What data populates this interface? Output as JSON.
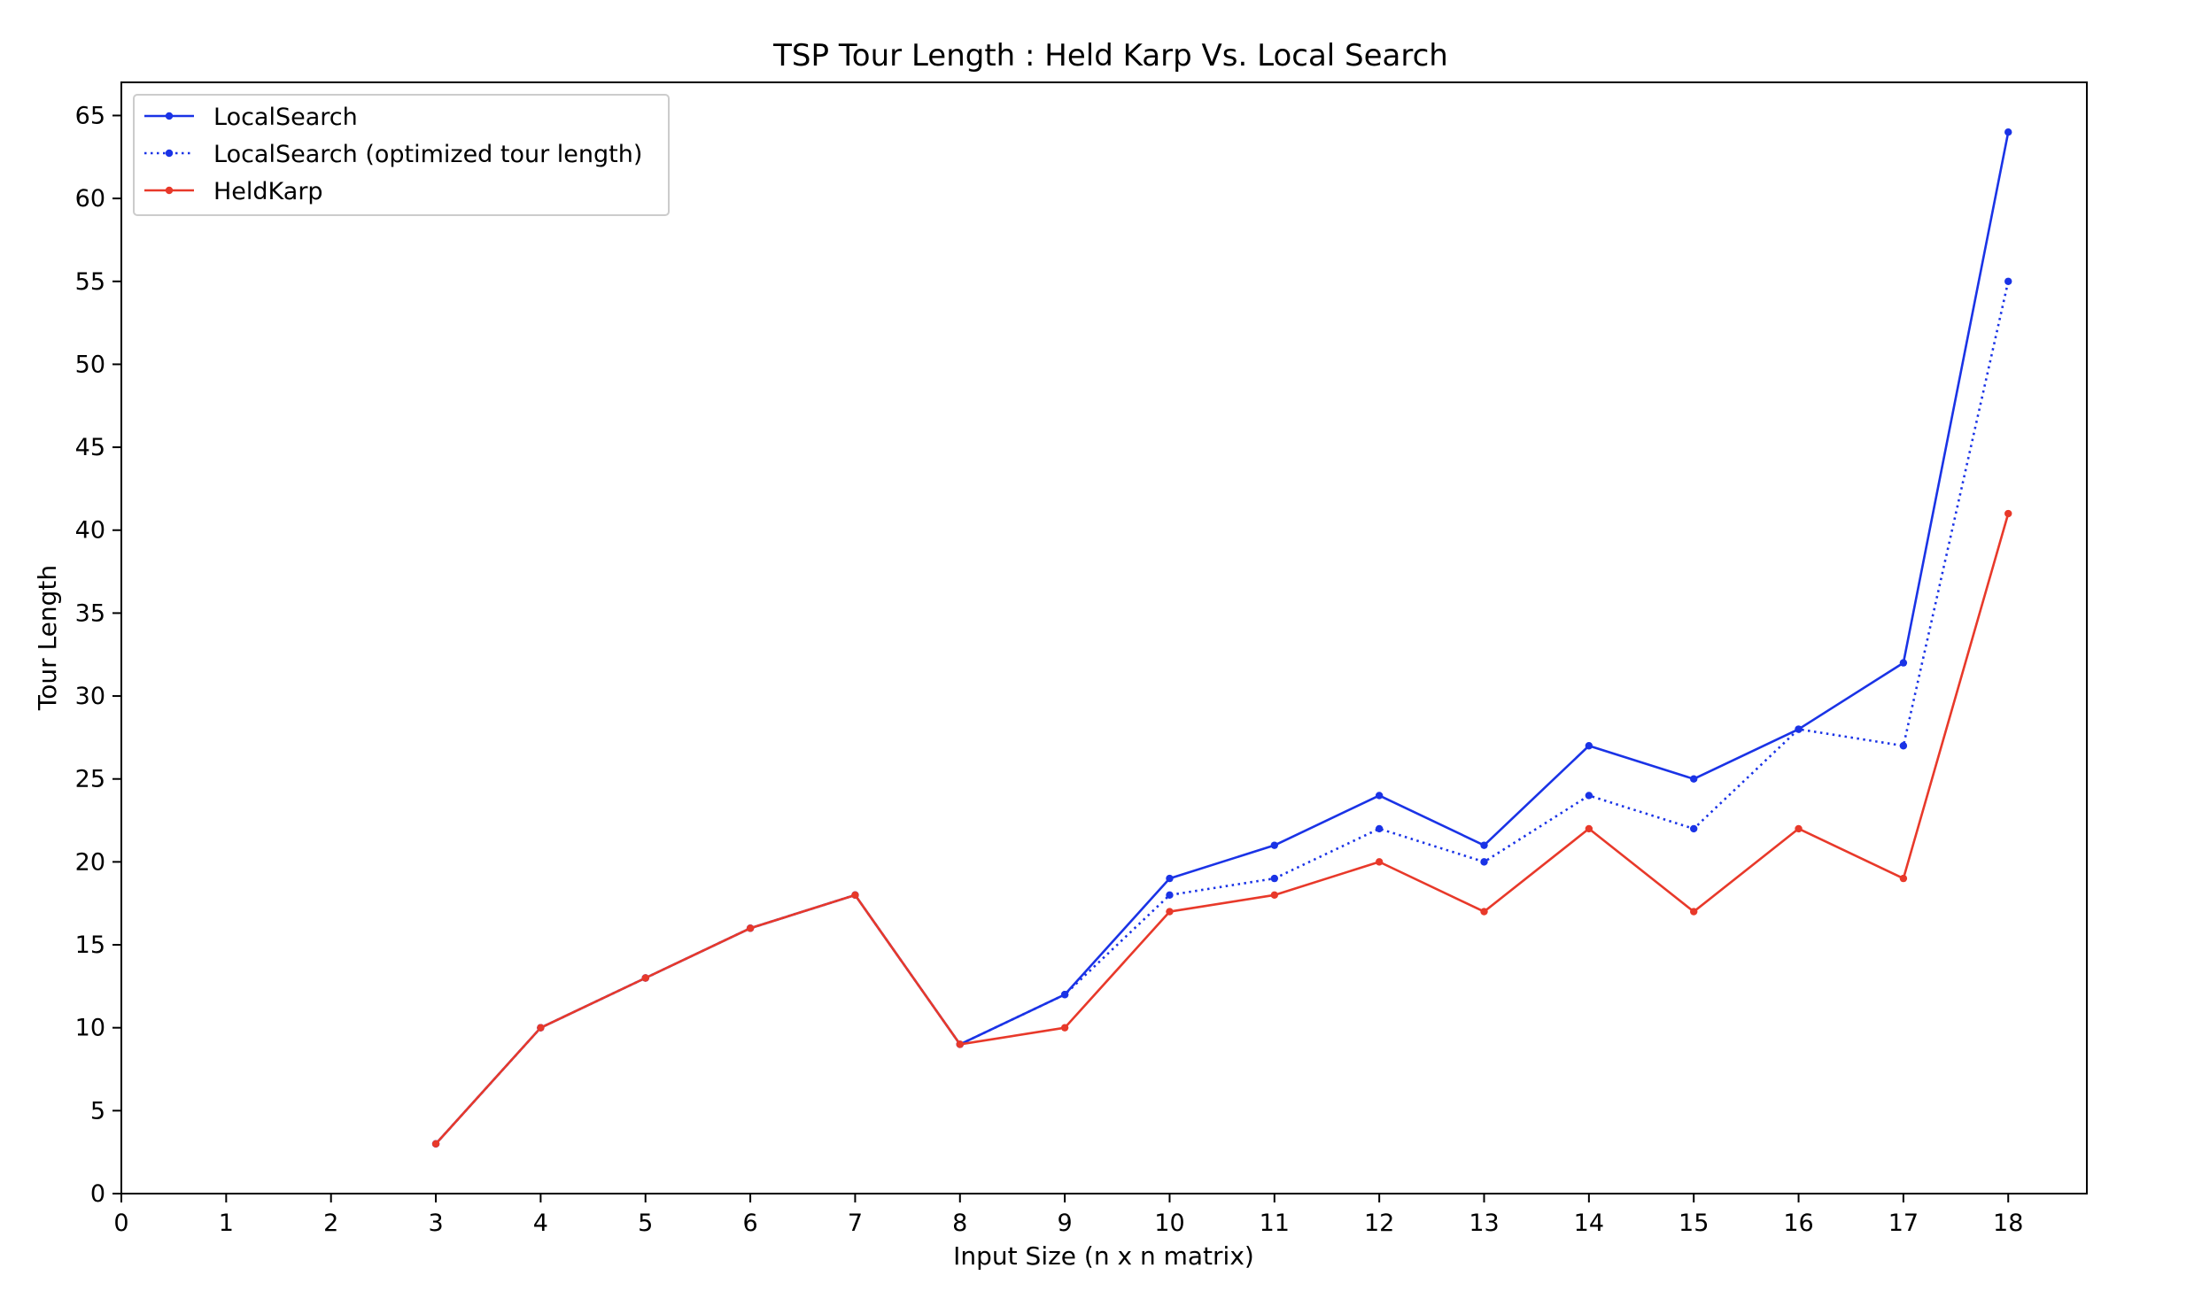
{
  "chart_data": {
    "type": "line",
    "title": "TSP Tour Length : Held Karp Vs. Local Search",
    "xlabel": "Input Size (n x n matrix)",
    "ylabel": "Tour Length",
    "xlim": [
      0,
      18.75
    ],
    "ylim": [
      0,
      67
    ],
    "xticks": [
      0,
      1,
      2,
      3,
      4,
      5,
      6,
      7,
      8,
      9,
      10,
      11,
      12,
      13,
      14,
      15,
      16,
      17,
      18
    ],
    "yticks": [
      0,
      5,
      10,
      15,
      20,
      25,
      30,
      35,
      40,
      45,
      50,
      55,
      60,
      65
    ],
    "grid": false,
    "legend_position": "top-left",
    "x": [
      3,
      4,
      5,
      6,
      7,
      8,
      9,
      10,
      11,
      12,
      13,
      14,
      15,
      16,
      17,
      18
    ],
    "series": [
      {
        "name": "LocalSearch",
        "color": "#1a33e6",
        "style": "solid",
        "values": [
          3,
          10,
          13,
          16,
          18,
          9,
          12,
          19,
          21,
          24,
          21,
          27,
          25,
          28,
          32,
          64
        ]
      },
      {
        "name": "LocalSearch (optimized tour length)",
        "color": "#1a33e6",
        "style": "dotted",
        "values": [
          3,
          10,
          13,
          16,
          18,
          9,
          12,
          18,
          19,
          22,
          20,
          24,
          22,
          28,
          27,
          55
        ]
      },
      {
        "name": "HeldKarp",
        "color": "#e8392a",
        "style": "solid",
        "values": [
          3,
          10,
          13,
          16,
          18,
          9,
          10,
          17,
          18,
          20,
          17,
          22,
          17,
          22,
          19,
          41
        ]
      }
    ]
  }
}
